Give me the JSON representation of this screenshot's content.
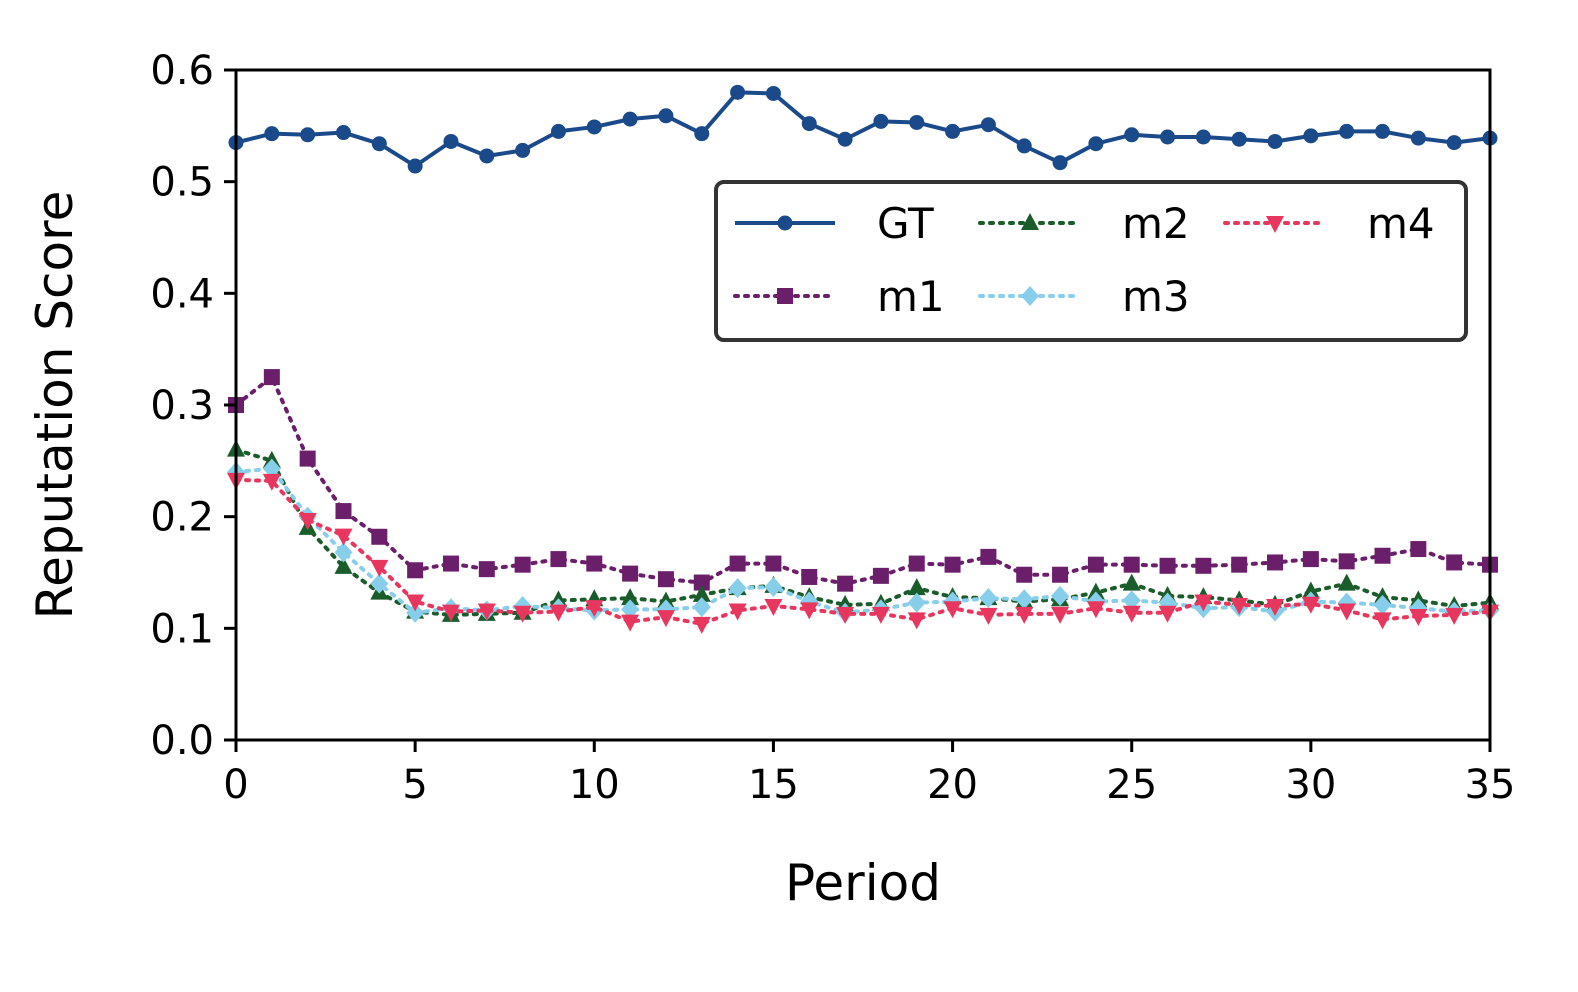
{
  "chart_data": {
    "type": "line",
    "title": "",
    "xlabel": "Period",
    "ylabel": "Reputation Score",
    "xlim": [
      0,
      35
    ],
    "ylim": [
      0,
      0.6
    ],
    "xticks": [
      "0",
      "5",
      "10",
      "15",
      "20",
      "25",
      "30",
      "35"
    ],
    "yticks": [
      "0.0",
      "0.1",
      "0.2",
      "0.3",
      "0.4",
      "0.5",
      "0.6"
    ],
    "legend_position": "upper-right",
    "x": [
      0,
      1,
      2,
      3,
      4,
      5,
      6,
      7,
      8,
      9,
      10,
      11,
      12,
      13,
      14,
      15,
      16,
      17,
      18,
      19,
      20,
      21,
      22,
      23,
      24,
      25,
      26,
      27,
      28,
      29,
      30,
      31,
      32,
      33,
      34,
      35
    ],
    "series": [
      {
        "name": "GT",
        "color": "#1a4a8a",
        "linestyle": "solid",
        "marker": "circle",
        "values": [
          0.535,
          0.543,
          0.542,
          0.544,
          0.534,
          0.514,
          0.536,
          0.523,
          0.528,
          0.545,
          0.549,
          0.556,
          0.559,
          0.543,
          0.58,
          0.579,
          0.552,
          0.538,
          0.554,
          0.553,
          0.545,
          0.551,
          0.532,
          0.517,
          0.534,
          0.542,
          0.54,
          0.54,
          0.538,
          0.536,
          0.541,
          0.545,
          0.545,
          0.539,
          0.535,
          0.539
        ]
      },
      {
        "name": "m1",
        "color": "#6b1f6b",
        "linestyle": "dotted",
        "marker": "square",
        "values": [
          0.3,
          0.325,
          0.252,
          0.205,
          0.182,
          0.152,
          0.158,
          0.153,
          0.157,
          0.162,
          0.158,
          0.149,
          0.144,
          0.141,
          0.158,
          0.158,
          0.146,
          0.14,
          0.147,
          0.158,
          0.157,
          0.164,
          0.148,
          0.148,
          0.157,
          0.157,
          0.156,
          0.156,
          0.157,
          0.159,
          0.162,
          0.16,
          0.165,
          0.171,
          0.159,
          0.157
        ]
      },
      {
        "name": "m2",
        "color": "#1a5c2a",
        "linestyle": "dotted",
        "marker": "triangle-up",
        "values": [
          0.26,
          0.25,
          0.19,
          0.155,
          0.132,
          0.115,
          0.112,
          0.113,
          0.114,
          0.125,
          0.126,
          0.127,
          0.124,
          0.13,
          0.136,
          0.138,
          0.128,
          0.121,
          0.122,
          0.136,
          0.128,
          0.127,
          0.124,
          0.126,
          0.132,
          0.14,
          0.129,
          0.128,
          0.125,
          0.121,
          0.133,
          0.14,
          0.128,
          0.125,
          0.12,
          0.123
        ]
      },
      {
        "name": "m3",
        "color": "#87ceeb",
        "linestyle": "dotted",
        "marker": "diamond",
        "values": [
          0.24,
          0.243,
          0.2,
          0.168,
          0.14,
          0.114,
          0.118,
          0.116,
          0.12,
          0.118,
          0.116,
          0.117,
          0.117,
          0.119,
          0.136,
          0.137,
          0.124,
          0.114,
          0.117,
          0.123,
          0.124,
          0.127,
          0.126,
          0.129,
          0.124,
          0.125,
          0.123,
          0.118,
          0.119,
          0.115,
          0.124,
          0.123,
          0.121,
          0.118,
          0.115,
          0.116
        ]
      },
      {
        "name": "m4",
        "color": "#e8375f",
        "linestyle": "dotted",
        "marker": "triangle-down",
        "values": [
          0.233,
          0.232,
          0.197,
          0.183,
          0.155,
          0.124,
          0.115,
          0.116,
          0.114,
          0.115,
          0.119,
          0.106,
          0.11,
          0.104,
          0.116,
          0.12,
          0.117,
          0.113,
          0.113,
          0.108,
          0.118,
          0.112,
          0.113,
          0.113,
          0.118,
          0.114,
          0.114,
          0.124,
          0.121,
          0.12,
          0.122,
          0.116,
          0.108,
          0.111,
          0.112,
          0.115
        ]
      }
    ]
  }
}
